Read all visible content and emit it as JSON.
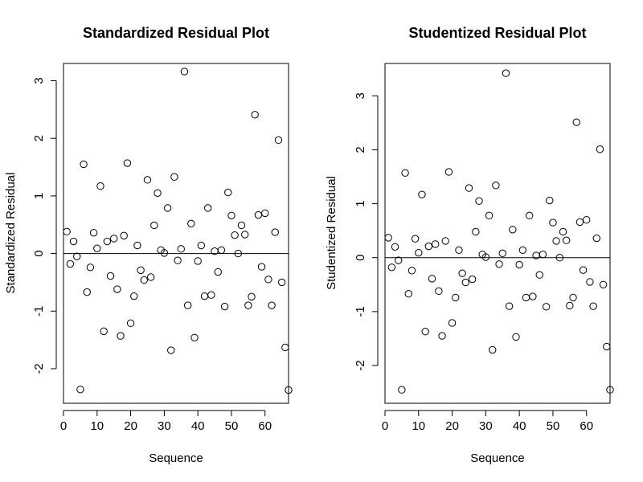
{
  "chart_data": [
    {
      "type": "scatter",
      "title": "Standardized Residual Plot",
      "xlabel": "Sequence",
      "ylabel": "Standardized Residual",
      "xlim": [
        0,
        67
      ],
      "ylim": [
        -2.6,
        3.3
      ],
      "xticks": [
        0,
        10,
        20,
        30,
        40,
        50,
        60
      ],
      "yticks": [
        -2,
        -1,
        0,
        1,
        2,
        3
      ],
      "reference_line": 0,
      "marker": "open-circle",
      "x": [
        1,
        2,
        3,
        4,
        5,
        6,
        7,
        8,
        9,
        10,
        11,
        12,
        13,
        14,
        15,
        16,
        17,
        18,
        19,
        20,
        21,
        22,
        23,
        24,
        25,
        26,
        27,
        28,
        29,
        30,
        31,
        32,
        33,
        34,
        35,
        36,
        37,
        38,
        39,
        40,
        41,
        42,
        43,
        44,
        45,
        46,
        47,
        48,
        49,
        50,
        51,
        52,
        53,
        54,
        55,
        56,
        57,
        58,
        59,
        60,
        61,
        62,
        63,
        64,
        65,
        66,
        67
      ],
      "y": [
        0.38,
        -0.18,
        0.21,
        -0.05,
        -2.36,
        1.55,
        -0.67,
        -0.24,
        0.36,
        0.09,
        1.17,
        -1.35,
        0.21,
        -0.39,
        0.26,
        -0.62,
        -1.43,
        0.31,
        1.57,
        -1.21,
        -0.74,
        0.14,
        -0.29,
        -0.46,
        1.28,
        -0.41,
        0.49,
        1.05,
        0.06,
        0.01,
        0.79,
        -1.68,
        1.33,
        -0.12,
        0.08,
        3.16,
        -0.9,
        0.52,
        -1.46,
        -0.13,
        0.14,
        -0.74,
        0.79,
        -0.72,
        0.04,
        -0.32,
        0.06,
        -0.92,
        1.06,
        0.66,
        0.32,
        0.0,
        0.49,
        0.33,
        -0.9,
        -0.75,
        2.41,
        0.67,
        -0.23,
        0.7,
        -0.45,
        -0.9,
        0.37,
        1.97,
        -0.5,
        -1.63,
        -2.37
      ]
    },
    {
      "type": "scatter",
      "title": "Studentized Residual Plot",
      "xlabel": "Sequence",
      "ylabel": "Studentized Residual",
      "xlim": [
        0,
        67
      ],
      "ylim": [
        -2.7,
        3.6
      ],
      "xticks": [
        0,
        10,
        20,
        30,
        40,
        50,
        60
      ],
      "yticks": [
        -2,
        -1,
        0,
        1,
        2,
        3
      ],
      "reference_line": 0,
      "marker": "open-circle",
      "x": [
        1,
        2,
        3,
        4,
        5,
        6,
        7,
        8,
        9,
        10,
        11,
        12,
        13,
        14,
        15,
        16,
        17,
        18,
        19,
        20,
        21,
        22,
        23,
        24,
        25,
        26,
        27,
        28,
        29,
        30,
        31,
        32,
        33,
        34,
        35,
        36,
        37,
        38,
        39,
        40,
        41,
        42,
        43,
        44,
        45,
        46,
        47,
        48,
        49,
        50,
        51,
        52,
        53,
        54,
        55,
        56,
        57,
        58,
        59,
        60,
        61,
        62,
        63,
        64,
        65,
        66,
        67
      ],
      "y": [
        0.37,
        -0.18,
        0.2,
        -0.05,
        -2.45,
        1.57,
        -0.67,
        -0.24,
        0.35,
        0.09,
        1.17,
        -1.37,
        0.21,
        -0.39,
        0.25,
        -0.62,
        -1.45,
        0.31,
        1.59,
        -1.21,
        -0.74,
        0.14,
        -0.29,
        -0.46,
        1.29,
        -0.4,
        0.48,
        1.05,
        0.06,
        0.01,
        0.78,
        -1.71,
        1.34,
        -0.12,
        0.08,
        3.42,
        -0.9,
        0.52,
        -1.47,
        -0.13,
        0.14,
        -0.74,
        0.78,
        -0.72,
        0.04,
        -0.32,
        0.06,
        -0.91,
        1.06,
        0.65,
        0.31,
        0.0,
        0.48,
        0.32,
        -0.89,
        -0.74,
        2.51,
        0.66,
        -0.23,
        0.7,
        -0.45,
        -0.9,
        0.36,
        2.01,
        -0.5,
        -1.65,
        -2.45
      ]
    }
  ]
}
